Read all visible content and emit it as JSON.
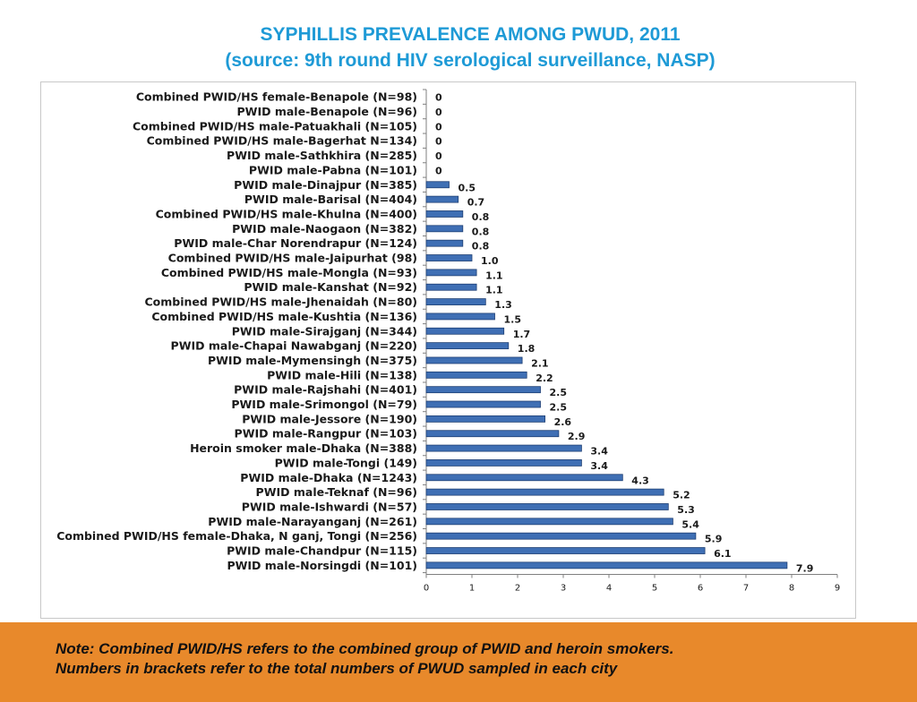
{
  "header": {
    "title": "SYPHILLIS PREVALENCE AMONG PWUD, 2011",
    "subtitle": "(source: 9th round HIV serological surveillance, NASP)"
  },
  "chart_data": {
    "type": "bar",
    "orientation": "horizontal",
    "categories": [
      "Combined PWID/HS female-Benapole (N=98)",
      "PWID male-Benapole (N=96)",
      "Combined PWID/HS male-Patuakhali (N=105)",
      "Combined PWID/HS male-Bagerhat N=134)",
      "PWID male-Sathkhira (N=285)",
      "PWID male-Pabna (N=101)",
      "PWID male-Dinajpur (N=385)",
      "PWID male-Barisal (N=404)",
      "Combined PWID/HS male-Khulna (N=400)",
      "PWID male-Naogaon (N=382)",
      "PWID male-Char Norendrapur (N=124)",
      "Combined PWID/HS male-Jaipurhat (98)",
      "Combined PWID/HS male-Mongla (N=93)",
      "PWID male-Kanshat (N=92)",
      "Combined PWID/HS male-Jhenaidah (N=80)",
      "Combined PWID/HS male-Kushtia (N=136)",
      "PWID male-Sirajganj (N=344)",
      "PWID male-Chapai Nawabganj (N=220)",
      "PWID male-Mymensingh (N=375)",
      "PWID male-Hili (N=138)",
      "PWID male-Rajshahi (N=401)",
      "PWID male-Srimongol (N=79)",
      "PWID male-Jessore (N=190)",
      "PWID male-Rangpur (N=103)",
      "Heroin smoker male-Dhaka (N=388)",
      "PWID male-Tongi (149)",
      "PWID male-Dhaka (N=1243)",
      "PWID male-Teknaf (N=96)",
      "PWID male-Ishwardi (N=57)",
      "PWID male-Narayanganj (N=261)",
      "Combined PWID/HS female-Dhaka, N ganj, Tongi (N=256)",
      "PWID male-Chandpur (N=115)",
      "PWID male-Norsingdi (N=101)"
    ],
    "values": [
      0,
      0,
      0,
      0,
      0,
      0,
      0.5,
      0.7,
      0.8,
      0.8,
      0.8,
      1.0,
      1.1,
      1.1,
      1.3,
      1.5,
      1.7,
      1.8,
      2.1,
      2.2,
      2.5,
      2.5,
      2.6,
      2.9,
      3.4,
      3.4,
      4.3,
      5.2,
      5.3,
      5.4,
      5.9,
      6.1,
      7.9
    ],
    "value_labels": [
      "0",
      "0",
      "0",
      "0",
      "0",
      "0",
      "0.5",
      "0.7",
      "0.8",
      "0.8",
      "0.8",
      "1.0",
      "1.1",
      "1.1",
      "1.3",
      "1.5",
      "1.7",
      "1.8",
      "2.1",
      "2.2",
      "2.5",
      "2.5",
      "2.6",
      "2.9",
      "3.4",
      "3.4",
      "4.3",
      "5.2",
      "5.3",
      "5.4",
      "5.9",
      "6.1",
      "7.9"
    ],
    "xlim": [
      0,
      9
    ],
    "xticks": [
      "0",
      "1",
      "2",
      "3",
      "4",
      "5",
      "6",
      "7",
      "8",
      "9"
    ],
    "grid": false,
    "legend": "none",
    "bar_color": "#3f6fb4",
    "bar_edge_color": "#1e3f73"
  },
  "note": {
    "line1": "Note: Combined PWID/HS refers to the combined group of PWID and heroin smokers.",
    "line2": "Numbers in brackets refer to the total numbers of PWUD sampled in each city"
  },
  "colors": {
    "title": "#1e9ad6",
    "note_band": "#e8892b"
  }
}
